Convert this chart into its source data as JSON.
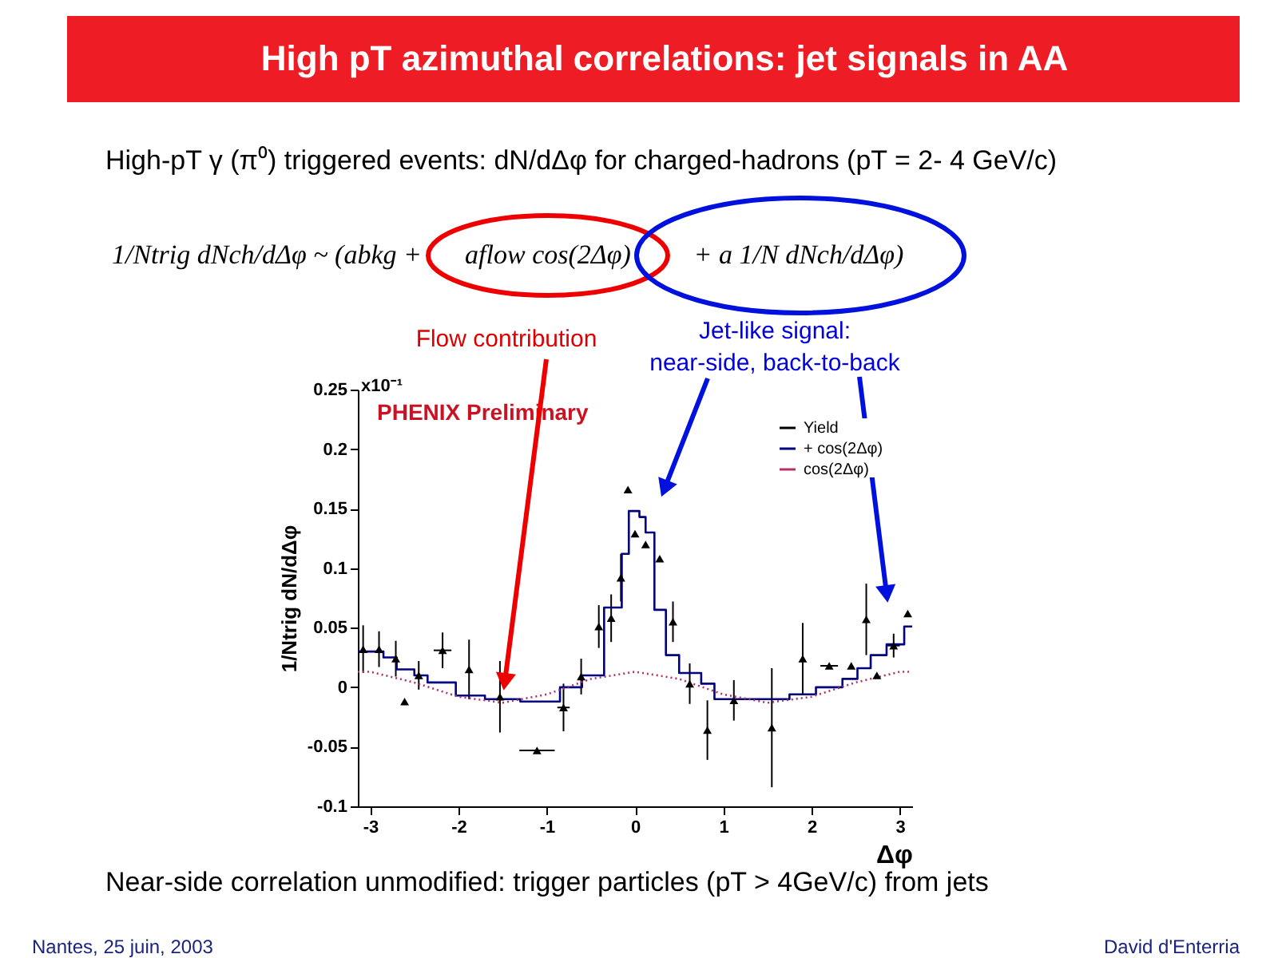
{
  "chart_data": {
    "type": "scatter",
    "title": "High pT azimuthal correlations: jet signals in AA",
    "subtitle": "High-pT γ (π⁰) triggered events:  dN/dΔφ for charged-hadrons (pT = 2- 4 GeV/c)",
    "xlabel": "Δφ",
    "ylabel": "1/Ntrig dN/dΔφ",
    "xlim": [
      -3.14,
      3.14
    ],
    "xticks": [
      -3,
      -2,
      -1,
      0,
      1,
      2,
      3
    ],
    "ylim": [
      -0.1,
      0.25
    ],
    "yticks": [
      -0.1,
      -0.05,
      0,
      0.05,
      0.1,
      0.15,
      0.2,
      0.25
    ],
    "grid": false,
    "legend": "top right",
    "series": [
      {
        "name": "Yield",
        "type": "scatter",
        "marker": "triangle",
        "color": "#000000",
        "x": [
          -3.08,
          -2.9,
          -2.71,
          -2.61,
          -2.45,
          -2.18,
          -1.88,
          -1.53,
          -1.11,
          -0.81,
          -0.61,
          -0.41,
          -0.27,
          -0.16,
          -0.08,
          0.0,
          0.12,
          0.28,
          0.43,
          0.62,
          0.82,
          1.12,
          1.55,
          1.9,
          2.2,
          2.45,
          2.62,
          2.74,
          2.93,
          3.09
        ],
        "values": [
          0.032,
          0.032,
          0.024,
          -0.012,
          0.01,
          0.031,
          0.015,
          -0.008,
          -0.053,
          -0.017,
          0.009,
          0.051,
          0.058,
          0.092,
          0.166,
          0.129,
          0.12,
          0.108,
          0.055,
          0.003,
          -0.036,
          -0.011,
          -0.034,
          0.024,
          0.018,
          0.018,
          0.057,
          0.01,
          0.035,
          0.062
        ],
        "errors": [
          0.02,
          0.015,
          0.015,
          null,
          0.012,
          0.015,
          0.025,
          0.03,
          null,
          0.02,
          0.015,
          0.018,
          0.02,
          0.02,
          null,
          null,
          null,
          null,
          0.017,
          0.017,
          0.025,
          0.017,
          0.05,
          0.03,
          null,
          null,
          0.03,
          null,
          0.01,
          null
        ],
        "xerrors": [
          null,
          null,
          null,
          null,
          null,
          0.1,
          null,
          null,
          0.2,
          0.07,
          null,
          null,
          null,
          null,
          null,
          null,
          null,
          null,
          null,
          null,
          null,
          null,
          null,
          null,
          0.1,
          null,
          null,
          null,
          0.07,
          null
        ]
      },
      {
        "name": "+ cos(2Δφ)",
        "type": "step",
        "line_style": "solid",
        "color": "#000080",
        "x": [
          -3.14,
          -2.85,
          -2.7,
          -2.5,
          -2.35,
          -2.03,
          -1.7,
          -1.3,
          -0.85,
          -0.6,
          -0.35,
          -0.15,
          -0.07,
          0.05,
          0.12,
          0.22,
          0.35,
          0.5,
          0.75,
          0.9,
          1.75,
          2.05,
          2.35,
          2.52,
          2.67,
          2.85,
          3.05,
          3.14
        ],
        "values": [
          0.03,
          0.025,
          0.015,
          0.01,
          0.004,
          -0.007,
          -0.01,
          -0.012,
          0.0,
          0.01,
          0.067,
          0.112,
          0.148,
          0.143,
          0.13,
          0.065,
          0.027,
          0.012,
          0.003,
          -0.01,
          -0.006,
          0.0,
          0.007,
          0.016,
          0.027,
          0.036,
          0.051,
          0.051
        ]
      },
      {
        "name": "cos(2Δφ)",
        "type": "line",
        "line_style": "dotted",
        "color": "#b0306a",
        "x": [
          -3.14,
          -3.0,
          -2.5,
          -2.0,
          -1.5,
          -1.0,
          -0.5,
          0.0,
          0.5,
          1.0,
          1.5,
          2.0,
          2.5,
          3.0,
          3.14
        ],
        "values": [
          0.013,
          0.013,
          0.004,
          -0.008,
          -0.013,
          -0.006,
          0.007,
          0.013,
          0.007,
          -0.006,
          -0.013,
          -0.008,
          0.004,
          0.013,
          0.013
        ]
      }
    ],
    "annotations": [
      "PHENIX Preliminary",
      "x10⁻¹",
      "Flow contribution",
      "Jet-like signal:\nnear-side, back-to-back",
      "1/Ntrig dNch/dΔφ ~ (abkg +",
      "aflow cos(2Δφ)",
      "+ a 1/N dNch/dΔφ)",
      "Near-side correlation unmodified: trigger particles (pT > 4GeV/c) from jets",
      "Nantes, 25 juin, 2003",
      "David d'Enterria"
    ]
  }
}
